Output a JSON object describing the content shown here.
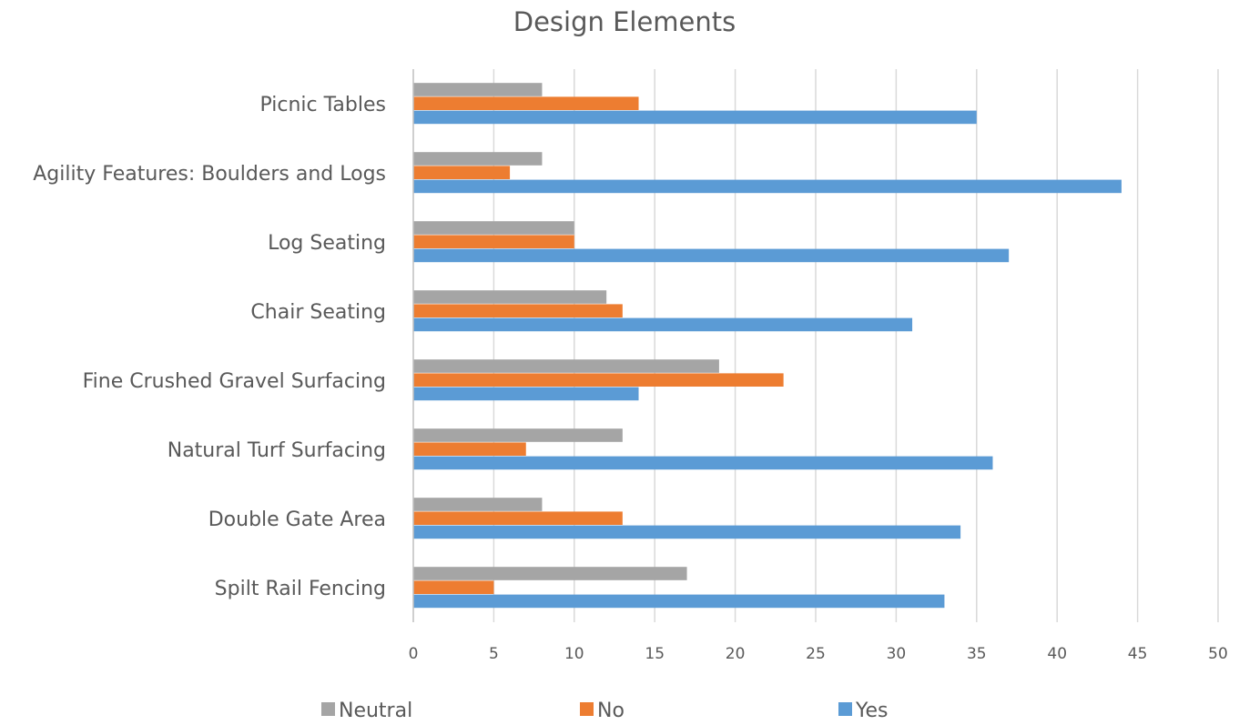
{
  "chart_data": {
    "type": "bar",
    "orientation": "horizontal",
    "title": "Design Elements",
    "categories": [
      "Picnic Tables",
      "Agility Features: Boulders and Logs",
      "Log Seating",
      "Chair Seating",
      "Fine Crushed Gravel Surfacing",
      "Natural Turf Surfacing",
      "Double Gate Area",
      "Spilt Rail Fencing"
    ],
    "series": [
      {
        "name": "Neutral",
        "color": "#a5a5a5",
        "values": [
          8,
          8,
          10,
          12,
          19,
          13,
          8,
          17
        ]
      },
      {
        "name": "No",
        "color": "#ed7d31",
        "values": [
          14,
          6,
          10,
          13,
          23,
          7,
          13,
          5
        ]
      },
      {
        "name": "Yes",
        "color": "#5b9bd5",
        "values": [
          35,
          44,
          37,
          31,
          14,
          36,
          34,
          33
        ]
      }
    ],
    "xticks": [
      "0",
      "5",
      "10",
      "15",
      "20",
      "25",
      "30",
      "35",
      "40",
      "45",
      "50"
    ],
    "xlim": [
      0,
      50
    ],
    "grid": "vertical",
    "legend": "bottom"
  }
}
